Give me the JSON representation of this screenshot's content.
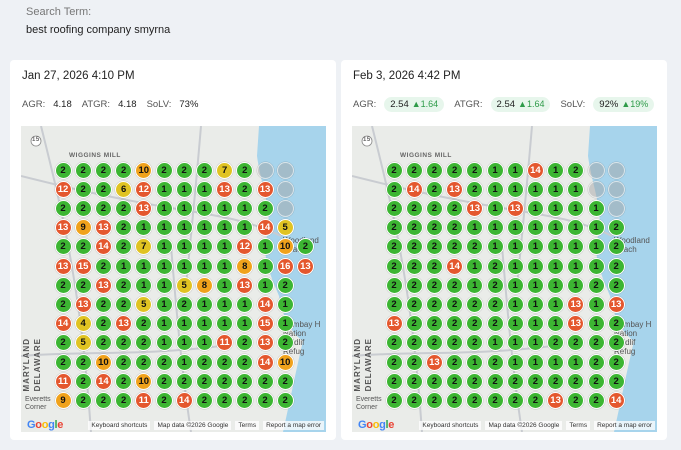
{
  "search": {
    "label": "Search Term:",
    "value": "best roofing company smyrna"
  },
  "map_labels": {
    "wiggins_mill": "WIGGINS MILL",
    "woodland_beach": "Woodland\nBeach",
    "bombay_hook": "Bombay H\nNation\nWildlif\nRefug",
    "delaware": "DELAWARE",
    "maryland": "MARYLAND",
    "everetts_corner": "Everetts\nCorner",
    "route_15": "15"
  },
  "footer": {
    "google": [
      "G",
      "o",
      "o",
      "g",
      "l",
      "e"
    ],
    "keyboard": "Keyboard shortcuts",
    "mapdata": "Map data ©2026 Google",
    "terms": "Terms",
    "report": "Report a map error"
  },
  "colors": {
    "green": "#3cb532",
    "yellow": "#e0c322",
    "orange": "#f0a21c",
    "red": "#e4572e",
    "water": "#a7d4ec",
    "delta": "#2e9b49"
  },
  "reports": [
    {
      "date": "Jan 27, 2026 4:10 PM",
      "agr_label": "AGR:",
      "agr": "4.18",
      "atgr_label": "ATGR:",
      "atgr": "4.18",
      "solv_label": "SoLV:",
      "solv": "73%",
      "grid": [
        [
          "2",
          "2",
          "2",
          "2",
          "10",
          "2",
          "2",
          "2",
          "7",
          "2",
          "",
          ""
        ],
        [
          "12",
          "2",
          "2",
          "6",
          "12",
          "1",
          "1",
          "1",
          "13",
          "2",
          "13",
          ""
        ],
        [
          "2",
          "2",
          "2",
          "2",
          "13",
          "1",
          "1",
          "1",
          "1",
          "1",
          "2",
          ""
        ],
        [
          "13",
          "9",
          "13",
          "2",
          "1",
          "1",
          "1",
          "1",
          "1",
          "1",
          "14",
          "5"
        ],
        [
          "2",
          "2",
          "14",
          "2",
          "7",
          "1",
          "1",
          "1",
          "1",
          "12",
          "1",
          "10",
          "2"
        ],
        [
          "13",
          "15",
          "2",
          "1",
          "1",
          "1",
          "1",
          "1",
          "1",
          "8",
          "1",
          "16",
          "13"
        ],
        [
          "2",
          "2",
          "13",
          "2",
          "1",
          "1",
          "5",
          "8",
          "1",
          "13",
          "1",
          "2"
        ],
        [
          "2",
          "13",
          "2",
          "2",
          "5",
          "1",
          "2",
          "1",
          "1",
          "1",
          "14",
          "1"
        ],
        [
          "14",
          "4",
          "2",
          "13",
          "2",
          "1",
          "1",
          "1",
          "1",
          "1",
          "15",
          "1"
        ],
        [
          "2",
          "5",
          "2",
          "2",
          "2",
          "1",
          "1",
          "1",
          "11",
          "2",
          "13",
          "2"
        ],
        [
          "2",
          "2",
          "10",
          "2",
          "2",
          "2",
          "1",
          "2",
          "2",
          "2",
          "14",
          "10"
        ],
        [
          "11",
          "2",
          "14",
          "2",
          "10",
          "2",
          "2",
          "2",
          "2",
          "2",
          "2",
          "2"
        ],
        [
          "9",
          "2",
          "2",
          "2",
          "11",
          "2",
          "14",
          "2",
          "2",
          "2",
          "2",
          "2"
        ]
      ]
    },
    {
      "date": "Feb 3, 2026 4:42 PM",
      "agr_label": "AGR:",
      "agr": "2.54",
      "agr_delta": "1.64",
      "atgr_label": "ATGR:",
      "atgr": "2.54",
      "atgr_delta": "1.64",
      "solv_label": "SoLV:",
      "solv": "92%",
      "solv_delta": "19%",
      "grid": [
        [
          "2",
          "2",
          "2",
          "2",
          "2",
          "1",
          "1",
          "14",
          "1",
          "2",
          "",
          ""
        ],
        [
          "2",
          "14",
          "2",
          "13",
          "2",
          "1",
          "1",
          "1",
          "1",
          "1",
          "",
          ""
        ],
        [
          "2",
          "2",
          "2",
          "2",
          "13",
          "1",
          "13",
          "1",
          "1",
          "1",
          "1",
          ""
        ],
        [
          "2",
          "2",
          "2",
          "2",
          "1",
          "1",
          "1",
          "1",
          "1",
          "1",
          "1",
          "2"
        ],
        [
          "2",
          "2",
          "2",
          "2",
          "2",
          "1",
          "1",
          "1",
          "1",
          "1",
          "1",
          "2"
        ],
        [
          "2",
          "2",
          "2",
          "14",
          "1",
          "2",
          "1",
          "1",
          "1",
          "1",
          "1",
          "2"
        ],
        [
          "2",
          "2",
          "2",
          "2",
          "1",
          "2",
          "1",
          "1",
          "1",
          "1",
          "2",
          "2"
        ],
        [
          "2",
          "2",
          "2",
          "2",
          "2",
          "2",
          "1",
          "1",
          "1",
          "13",
          "1",
          "13"
        ],
        [
          "13",
          "2",
          "2",
          "2",
          "2",
          "2",
          "1",
          "1",
          "1",
          "13",
          "1",
          "2"
        ],
        [
          "2",
          "2",
          "2",
          "2",
          "2",
          "1",
          "1",
          "1",
          "2",
          "2",
          "2",
          "2"
        ],
        [
          "2",
          "2",
          "13",
          "2",
          "1",
          "2",
          "1",
          "1",
          "1",
          "1",
          "2",
          "2"
        ],
        [
          "2",
          "2",
          "2",
          "2",
          "2",
          "2",
          "2",
          "2",
          "2",
          "2",
          "2",
          "2"
        ],
        [
          "2",
          "2",
          "2",
          "2",
          "2",
          "2",
          "2",
          "2",
          "13",
          "2",
          "2",
          "14"
        ]
      ]
    }
  ]
}
